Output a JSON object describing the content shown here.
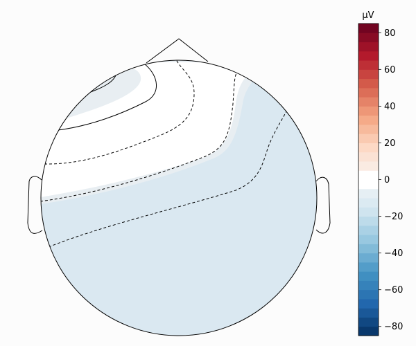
{
  "chart_data": {
    "type": "heatmap",
    "subtype": "eeg-topomap",
    "title": "",
    "colormap": "RdBu_r",
    "colorbar": {
      "unit_label": "µV",
      "vmin": -85,
      "vmax": 85,
      "ticks": [
        -80,
        -60,
        -40,
        -20,
        0,
        20,
        40,
        60,
        80
      ],
      "tick_labels": [
        "−80",
        "−60",
        "−40",
        "−20",
        "0",
        "20",
        "40",
        "60",
        "80"
      ]
    },
    "regions": [
      {
        "name": "frontal-left-patch",
        "approx_value_uv": -5,
        "color": "#e8eef2"
      },
      {
        "name": "frontal-white",
        "approx_value_uv": 0,
        "color": "#ffffff"
      },
      {
        "name": "mid-band",
        "approx_value_uv": -5,
        "color": "#e8eef2"
      },
      {
        "name": "posterior",
        "approx_value_uv": -15,
        "color": "#dae8f1"
      }
    ],
    "contour_levels_uv": [
      -15,
      -10,
      -5,
      0,
      5,
      10
    ]
  }
}
